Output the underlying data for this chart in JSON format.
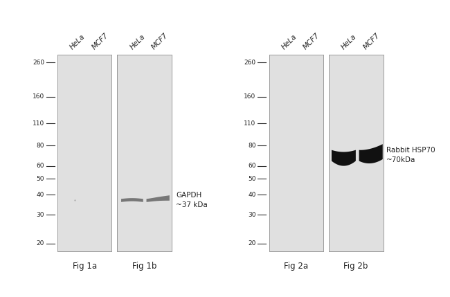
{
  "figure_bg": "#ffffff",
  "panel_bg": "#e0e0e0",
  "marker_labels": [
    "260",
    "160",
    "110",
    "80",
    "60",
    "50",
    "40",
    "30",
    "20"
  ],
  "marker_values": [
    260,
    160,
    110,
    80,
    60,
    50,
    40,
    30,
    20
  ],
  "lane_labels": [
    "HeLa",
    "MCF7"
  ],
  "fig_labels": [
    "Fig 1a",
    "Fig 1b",
    "Fig 2a",
    "Fig 2b"
  ],
  "annotation_1": "GAPDH\n~37 kDa",
  "annotation_2": "Rabbit HSP70\n~70kDa",
  "band_color_gapdh": "#888888",
  "band_color_hsp70": "#111111",
  "tick_color": "#333333",
  "text_color": "#222222",
  "font_size_marker": 6.5,
  "font_size_label": 7.5,
  "font_size_fig": 8.5,
  "font_size_annot": 7.5,
  "log_min": 1.255,
  "log_max": 2.462
}
